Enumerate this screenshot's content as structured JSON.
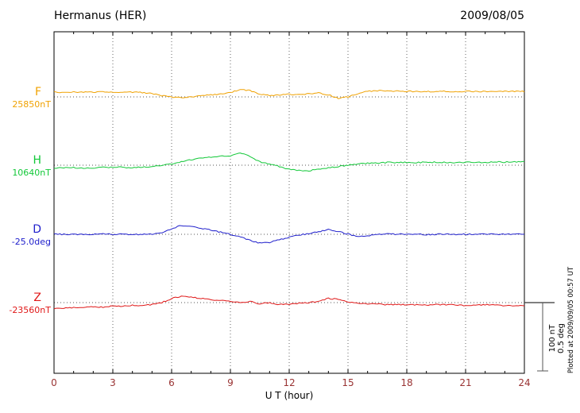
{
  "header": {
    "title": "Hermanus (HER)",
    "date": "2009/08/05"
  },
  "chart_data": {
    "type": "line",
    "title": "Hermanus (HER)",
    "date_label": "2009/08/05",
    "xlabel": "U T (hour)",
    "xlim": [
      0,
      24
    ],
    "x_ticks": [
      0,
      3,
      6,
      9,
      12,
      15,
      18,
      21,
      24
    ],
    "grid": "dotted vertical gridlines every 3 hours, dotted horizontal baseline per trace",
    "legend_position": "left baseline labels",
    "axis_tick_color": "#993333",
    "frame_color": "#000000",
    "plotted_at": "Plotted at 2009/09/05 00:57 UT",
    "scale_bar": {
      "nt_label": "100 nT",
      "deg_label": "0.5 deg",
      "span_nt": 100,
      "span_deg": 0.5
    },
    "x": [
      0,
      0.5,
      1,
      1.5,
      2,
      2.5,
      3,
      3.5,
      4,
      4.5,
      5,
      5.5,
      6,
      6.5,
      7,
      7.5,
      8,
      8.5,
      9,
      9.5,
      10,
      10.5,
      11,
      11.5,
      12,
      12.5,
      13,
      13.5,
      14,
      14.5,
      15,
      15.5,
      16,
      16.5,
      17,
      17.5,
      18,
      18.5,
      19,
      19.5,
      20,
      20.5,
      21,
      21.5,
      22,
      22.5,
      23,
      23.5,
      24
    ],
    "series": [
      {
        "name": "F",
        "baseline_label": "25850nT",
        "unit": "nT",
        "color": "#f0a202",
        "deviation": [
          7,
          7,
          7.5,
          7,
          7,
          7.5,
          7,
          7,
          7,
          6.5,
          5,
          2,
          0,
          -1,
          0,
          2,
          3,
          4,
          6,
          11,
          9,
          4,
          2,
          3,
          4,
          3,
          5,
          6,
          3,
          -2,
          0,
          5,
          8,
          9,
          9,
          8.5,
          8,
          8,
          8,
          8,
          8,
          8,
          8,
          8,
          8,
          8.5,
          8,
          8,
          8
        ]
      },
      {
        "name": "H",
        "baseline_label": "10640nT",
        "unit": "nT",
        "color": "#12c838",
        "deviation": [
          -4,
          -4,
          -3.5,
          -4,
          -4,
          -3,
          -3,
          -3,
          -3.5,
          -3,
          -2,
          0,
          2,
          5,
          8,
          10,
          12,
          13,
          14,
          18,
          13,
          5,
          2,
          -2,
          -6,
          -8,
          -8,
          -6,
          -4,
          -2,
          0,
          2,
          3,
          3,
          4,
          4,
          4,
          4,
          4,
          4.5,
          4,
          4,
          4,
          4.5,
          4,
          5,
          4.5,
          5,
          5
        ]
      },
      {
        "name": "D",
        "baseline_label": "-25.0deg",
        "unit": "deg",
        "color": "#2020cc",
        "deviation": [
          0,
          0,
          0.002,
          -0.002,
          0,
          0.002,
          0,
          0,
          -0.002,
          0,
          0.002,
          0.01,
          0.04,
          0.065,
          0.06,
          0.045,
          0.03,
          0.015,
          0,
          -0.02,
          -0.045,
          -0.065,
          -0.06,
          -0.04,
          -0.02,
          -0.005,
          0.005,
          0.02,
          0.035,
          0.02,
          0,
          -0.015,
          -0.01,
          0,
          0.002,
          0,
          0.002,
          0,
          -0.002,
          0,
          0.002,
          0,
          0,
          0.002,
          0,
          0.002,
          0,
          0.002,
          0
        ]
      },
      {
        "name": "Z",
        "baseline_label": "-23560nT",
        "unit": "nT",
        "color": "#e01818",
        "deviation": [
          -9,
          -8,
          -7,
          -7.5,
          -6,
          -6.5,
          -5,
          -5.5,
          -4,
          -4,
          -3,
          0,
          6,
          9,
          8,
          6,
          4,
          3,
          2,
          0,
          2,
          -2,
          0,
          -3,
          -2,
          -1,
          0,
          2,
          6,
          5,
          1,
          -1,
          -2,
          -2,
          -3,
          -2.5,
          -3,
          -3,
          -3.5,
          -3,
          -3,
          -3.5,
          -4,
          -3.5,
          -3,
          -4,
          -4,
          -4.5,
          -5
        ]
      }
    ]
  }
}
